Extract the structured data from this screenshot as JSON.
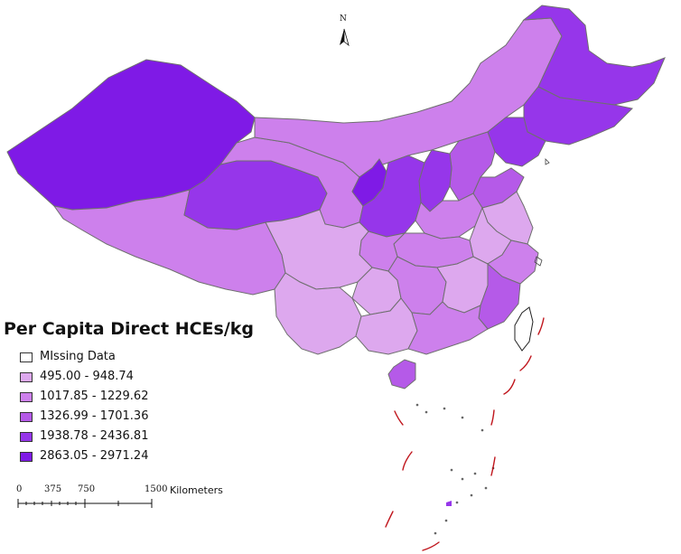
{
  "legend": {
    "title": "Per Capita Direct HCEs/kg",
    "items": [
      {
        "label": "MIssing Data",
        "color": "#ffffff"
      },
      {
        "label": "495.00 - 948.74",
        "color": "#dda8ee"
      },
      {
        "label": "1017.85 - 1229.62",
        "color": "#cd80ec"
      },
      {
        "label": "1326.99 - 1701.36",
        "color": "#b55ae8"
      },
      {
        "label": "1938.78 - 2436.81",
        "color": "#9636ea"
      },
      {
        "label": "2863.05 - 2971.24",
        "color": "#7f1ae6"
      }
    ]
  },
  "scale_bar": {
    "ticks": [
      "0",
      "375",
      "750",
      "1500"
    ],
    "units": "Kilometers"
  },
  "north_arrow": {
    "label": "N",
    "icon": "north-arrow-icon"
  },
  "colors": {
    "boundary": "#6f6f6f",
    "dash_line": "#c0161d",
    "background": "#ffffff"
  }
}
